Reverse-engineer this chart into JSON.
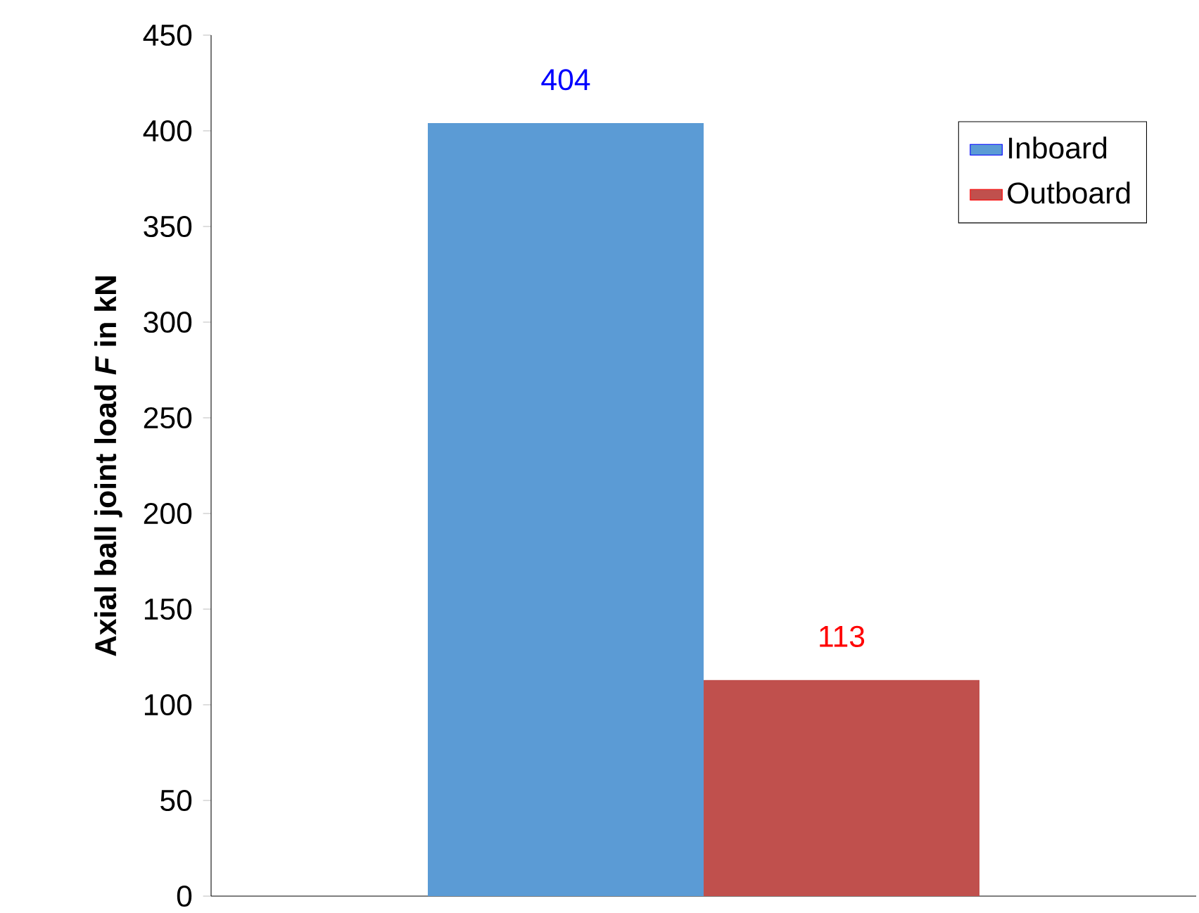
{
  "chart_data": {
    "type": "bar",
    "ylabel": "Axial ball joint load *F* in kN",
    "categories": [
      null
    ],
    "series": [
      {
        "name": "Inboard",
        "color": "#5b9bd5",
        "values": [
          404
        ]
      },
      {
        "name": "Outboard",
        "color": "#c0504d",
        "values": [
          113
        ]
      }
    ],
    "ylim": [
      0,
      450
    ],
    "yticks": [
      0,
      50,
      100,
      150,
      200,
      250,
      300,
      350,
      400,
      450
    ],
    "data_labels": true,
    "legend": "top right",
    "grid": false
  }
}
